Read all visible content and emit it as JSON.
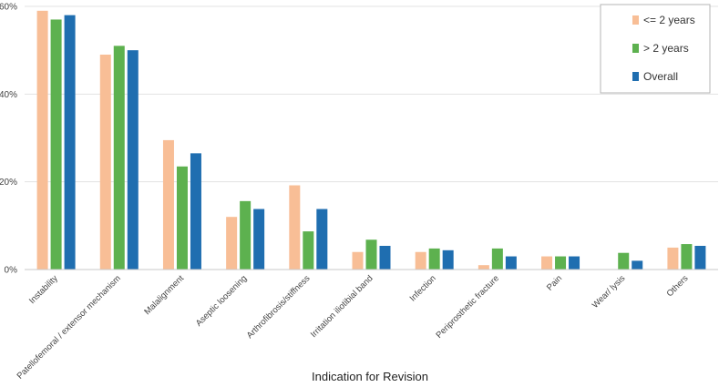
{
  "chart_data": {
    "type": "bar",
    "xlabel": "Indication for Revision",
    "ylabel": "",
    "ylim": [
      0,
      60
    ],
    "y_ticks": [
      0,
      20,
      40,
      60
    ],
    "y_tick_labels": [
      "0%",
      "20%",
      "40%",
      "60%"
    ],
    "grid": true,
    "legend_position": "top-right",
    "categories": [
      "Instability",
      "Patellofemoral / extensor mechanism",
      "Malalignment",
      "Aseptic loosening",
      "Arthrofibrosis/stiffness",
      "Irritation iliotibial band",
      "Infection",
      "Periprosthetic fracture",
      "Pain",
      "Wear/ lysis",
      "Others"
    ],
    "series": [
      {
        "name": "<=  2 years",
        "color": "#F8BE96",
        "values": [
          59,
          49,
          29.5,
          12,
          19.2,
          4,
          4,
          1,
          3,
          0,
          5
        ]
      },
      {
        "name": "> 2 years",
        "color": "#5DB14F",
        "values": [
          57,
          51,
          23.5,
          15.6,
          8.7,
          6.8,
          4.8,
          4.8,
          3,
          3.8,
          5.8
        ]
      },
      {
        "name": "Overall",
        "color": "#1F6EB0",
        "values": [
          58,
          50,
          26.5,
          13.8,
          13.8,
          5.4,
          4.4,
          3,
          3,
          2,
          5.4
        ]
      }
    ]
  }
}
